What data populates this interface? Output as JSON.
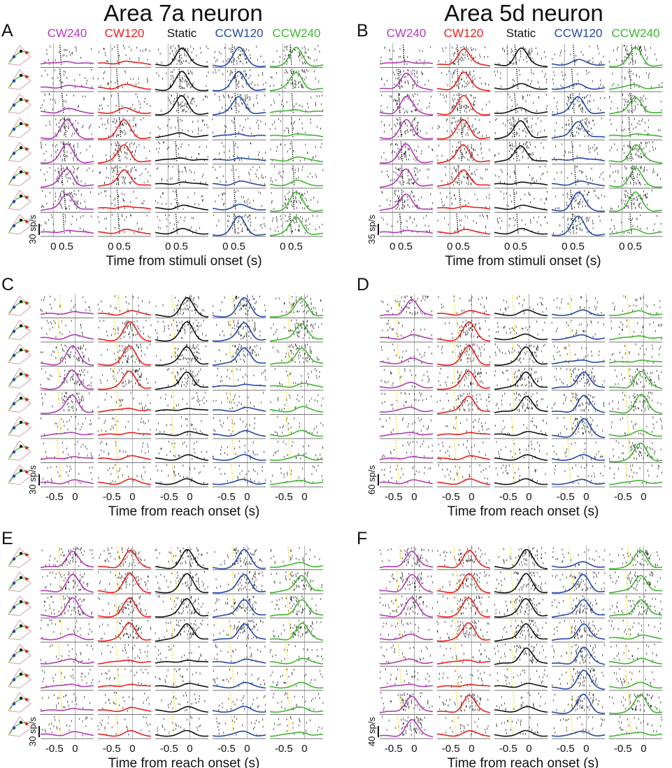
{
  "titles": {
    "left": "Area 7a neuron",
    "right": "Area 5d neuron"
  },
  "conditions": [
    "CW240",
    "CW120",
    "Static",
    "CCW120",
    "CCW240"
  ],
  "colors": {
    "CW240": "#b23ab5",
    "CW120": "#e8201c",
    "Static": "#111111",
    "CCW120": "#2448a8",
    "CCW240": "#3fb52f",
    "marker": "#f2e23a"
  },
  "chart_data": [
    {
      "type": "line",
      "panel": "A",
      "xlabel": "Time from stimuli onset (s)",
      "xticks": [
        "0",
        "0.5"
      ],
      "scale_bar": "30 sp/s",
      "rows": 8,
      "series_peak_rows": {
        "CW240": [
          3,
          4,
          5,
          6
        ],
        "CW120": [
          3,
          4,
          5
        ],
        "Static": [
          0,
          1,
          2
        ],
        "CCW120": [
          0,
          1,
          2,
          7
        ],
        "CCW240": [
          0,
          1,
          6,
          7
        ]
      }
    },
    {
      "type": "line",
      "panel": "B",
      "xlabel": "Time from stimuli onset (s)",
      "xticks": [
        "0",
        "0.5"
      ],
      "scale_bar": "35 sp/s",
      "rows": 8,
      "series_peak_rows": {
        "CW240": [
          1,
          2,
          3,
          4,
          5,
          6
        ],
        "CW120": [
          0,
          1,
          2,
          3,
          4,
          5
        ],
        "Static": [
          0,
          3,
          4
        ],
        "CCW120": [
          2,
          3,
          6,
          7
        ],
        "CCW240": [
          0,
          2,
          4,
          5,
          6
        ]
      }
    },
    {
      "type": "line",
      "panel": "C",
      "xlabel": "Time from reach onset (s)",
      "xticks": [
        "-0.5",
        "0"
      ],
      "scale_bar": "30 sp/s",
      "rows": 8,
      "series_peak_rows": {
        "CW240": [
          2,
          3,
          4
        ],
        "CW120": [
          1,
          2,
          3
        ],
        "Static": [
          0,
          1,
          2,
          3
        ],
        "CCW120": [
          0,
          1,
          2
        ],
        "CCW240": [
          0,
          1,
          2
        ]
      }
    },
    {
      "type": "line",
      "panel": "D",
      "xlabel": "Time from reach onset (s)",
      "xticks": [
        "-0.5",
        "0"
      ],
      "scale_bar": "60 sp/s",
      "rows": 8,
      "series_peak_rows": {
        "CW240": [
          0
        ],
        "CW120": [
          1,
          2,
          3,
          4
        ],
        "Static": [
          2,
          3,
          4
        ],
        "CCW120": [
          3,
          4,
          5
        ],
        "CCW240": [
          3,
          4,
          6
        ]
      }
    },
    {
      "type": "line",
      "panel": "E",
      "xlabel": "Time from reach onset (s)",
      "xticks": [
        "-0.5",
        "0"
      ],
      "scale_bar": "30 sp/s",
      "rows": 8,
      "series_peak_rows": {
        "CW240": [
          0,
          1,
          2
        ],
        "CW120": [
          0,
          1,
          2,
          3
        ],
        "Static": [
          0,
          1,
          2,
          3
        ],
        "CCW120": [
          0,
          1,
          2,
          3
        ],
        "CCW240": [
          1,
          2,
          3
        ]
      }
    },
    {
      "type": "line",
      "panel": "F",
      "xlabel": "Time from reach onset (s)",
      "xticks": [
        "-0.5",
        "0"
      ],
      "scale_bar": "40 sp/s",
      "rows": 8,
      "series_peak_rows": {
        "CW240": [
          0,
          1,
          2,
          6,
          7
        ],
        "CW120": [
          0,
          1,
          2,
          3,
          6
        ],
        "Static": [
          0,
          1,
          2,
          3,
          4
        ],
        "CCW120": [
          1,
          2,
          3,
          4,
          5,
          6
        ],
        "CCW240": [
          0,
          1,
          2,
          6
        ]
      }
    }
  ]
}
